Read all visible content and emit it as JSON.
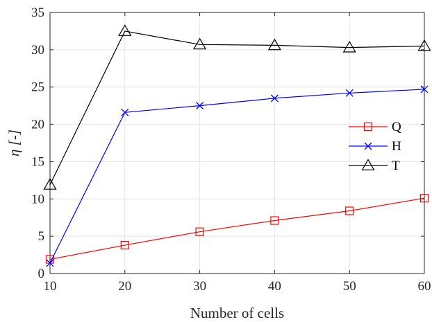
{
  "chart_data": {
    "type": "line",
    "xlabel": "Number of cells",
    "ylabel": "η [-]",
    "xlim": [
      10,
      60
    ],
    "ylim": [
      0,
      35
    ],
    "xticks": [
      10,
      20,
      30,
      40,
      50,
      60
    ],
    "yticks": [
      0,
      5,
      10,
      15,
      20,
      25,
      30,
      35
    ],
    "grid": true,
    "legend_position": "right",
    "x": [
      10,
      20,
      30,
      40,
      50,
      60
    ],
    "series": [
      {
        "name": "Q",
        "color": "#ff0000",
        "marker": "square",
        "values": [
          1.9,
          3.8,
          5.6,
          7.1,
          8.4,
          10.1
        ]
      },
      {
        "name": "H",
        "color": "#0000ff",
        "marker": "cross",
        "values": [
          1.4,
          21.6,
          22.5,
          23.5,
          24.2,
          24.7
        ]
      },
      {
        "name": "T",
        "color": "#000000",
        "marker": "triangle",
        "values": [
          11.9,
          32.5,
          30.7,
          30.6,
          30.3,
          30.5
        ]
      }
    ]
  }
}
